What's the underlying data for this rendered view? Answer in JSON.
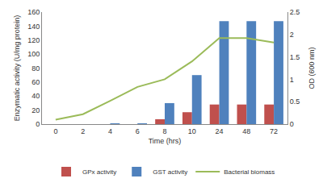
{
  "chart_data": {
    "type": "bar",
    "x_label": "Time (hrs)",
    "y_label": "Enzymatic activity (U/mg protein)",
    "y2_label": "OD (600 nm)",
    "categories": [
      "0",
      "2",
      "4",
      "6",
      "8",
      "10",
      "24",
      "48",
      "72"
    ],
    "series": [
      {
        "name": "GPx activity",
        "type": "bar",
        "color": "#c0504d",
        "values": [
          0,
          0,
          0,
          0,
          7,
          17,
          28,
          28,
          28
        ]
      },
      {
        "name": "GST activity",
        "type": "bar",
        "color": "#4f81bd",
        "values": [
          0,
          0,
          1,
          1,
          30,
          70,
          147,
          147,
          147
        ]
      },
      {
        "name": "Bacterial biomass",
        "type": "line",
        "color": "#9bbb59",
        "axis": "y2",
        "values": [
          0.1,
          0.22,
          0.52,
          0.83,
          1.0,
          1.4,
          1.92,
          1.92,
          1.82
        ]
      }
    ],
    "ylim": [
      0,
      160
    ],
    "yticks": [
      0,
      20,
      40,
      60,
      80,
      100,
      120,
      140,
      160
    ],
    "y2lim": [
      0,
      2.5
    ],
    "y2ticks": [
      0,
      0.5,
      1,
      1.5,
      2,
      2.5
    ],
    "grid": false,
    "legend": "bottom"
  }
}
